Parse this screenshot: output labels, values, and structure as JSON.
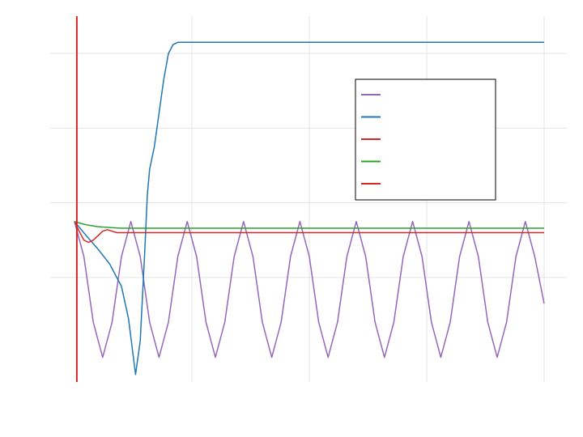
{
  "chart_data": {
    "type": "line",
    "title": "",
    "xlabel": "",
    "ylabel": "",
    "xlim": [
      0,
      2.0
    ],
    "ylim": [
      -1.4,
      3.5
    ],
    "grid": true,
    "legend_position": "upper-right",
    "series": [
      {
        "name": "",
        "color": "#9467bd",
        "x": [
          0,
          0.04,
          0.08,
          0.12,
          0.16,
          0.2,
          0.24,
          0.28,
          0.32,
          0.36,
          0.4,
          0.44,
          0.48,
          0.52,
          0.56,
          0.6,
          0.64,
          0.68,
          0.72,
          0.76,
          0.8,
          0.84,
          0.88,
          0.92,
          0.96,
          1.0,
          1.04,
          1.08,
          1.12,
          1.16,
          1.2,
          1.24,
          1.28,
          1.32,
          1.36,
          1.4,
          1.44,
          1.48,
          1.52,
          1.56,
          1.6,
          1.64,
          1.68,
          1.72,
          1.76,
          1.8,
          1.84,
          1.88,
          1.92,
          1.96,
          2.0
        ],
        "y": [
          0.75,
          0.28,
          -0.6,
          -1.07,
          -0.6,
          0.28,
          0.75,
          0.28,
          -0.6,
          -1.07,
          -0.6,
          0.28,
          0.75,
          0.28,
          -0.6,
          -1.07,
          -0.6,
          0.28,
          0.75,
          0.28,
          -0.6,
          -1.07,
          -0.6,
          0.28,
          0.75,
          0.28,
          -0.6,
          -1.07,
          -0.6,
          0.28,
          0.75,
          0.28,
          -0.6,
          -1.07,
          -0.6,
          0.28,
          0.75,
          0.28,
          -0.6,
          -1.07,
          -0.6,
          0.28,
          0.75,
          0.28,
          -0.6,
          -1.07,
          -0.6,
          0.28,
          0.75,
          0.28,
          -0.35
        ]
      },
      {
        "name": "",
        "color": "#1f77b4",
        "x": [
          0,
          0.05,
          0.1,
          0.15,
          0.2,
          0.23,
          0.26,
          0.28,
          0.3,
          0.31,
          0.32,
          0.33,
          0.34,
          0.36,
          0.38,
          0.4,
          0.42,
          0.44,
          0.46,
          0.5,
          0.6,
          1.0,
          1.5,
          2.0
        ],
        "y": [
          0.75,
          0.56,
          0.38,
          0.18,
          -0.12,
          -0.55,
          -1.3,
          -0.85,
          0.4,
          1.1,
          1.45,
          1.6,
          1.75,
          2.2,
          2.65,
          3.0,
          3.12,
          3.15,
          3.15,
          3.15,
          3.15,
          3.15,
          3.15,
          3.15
        ]
      },
      {
        "name": "",
        "color": "#d62728",
        "x": [
          0,
          0.02,
          0.04,
          0.06,
          0.08,
          0.1,
          0.12,
          0.14,
          0.16,
          0.18,
          0.2,
          0.3,
          1.0,
          2.0
        ],
        "y": [
          0.75,
          0.62,
          0.5,
          0.47,
          0.5,
          0.56,
          0.62,
          0.64,
          0.62,
          0.6,
          0.6,
          0.6,
          0.6,
          0.6
        ]
      },
      {
        "name": "",
        "color": "#2ca02c",
        "x": [
          0,
          0.03,
          0.06,
          0.1,
          0.15,
          0.2,
          0.3,
          1.0,
          2.0
        ],
        "y": [
          0.75,
          0.72,
          0.7,
          0.68,
          0.67,
          0.66,
          0.66,
          0.66,
          0.66
        ]
      },
      {
        "name": "",
        "color": "#d62728",
        "x": [
          0.01,
          0.01
        ],
        "y": [
          -1.4,
          3.5
        ]
      }
    ]
  }
}
